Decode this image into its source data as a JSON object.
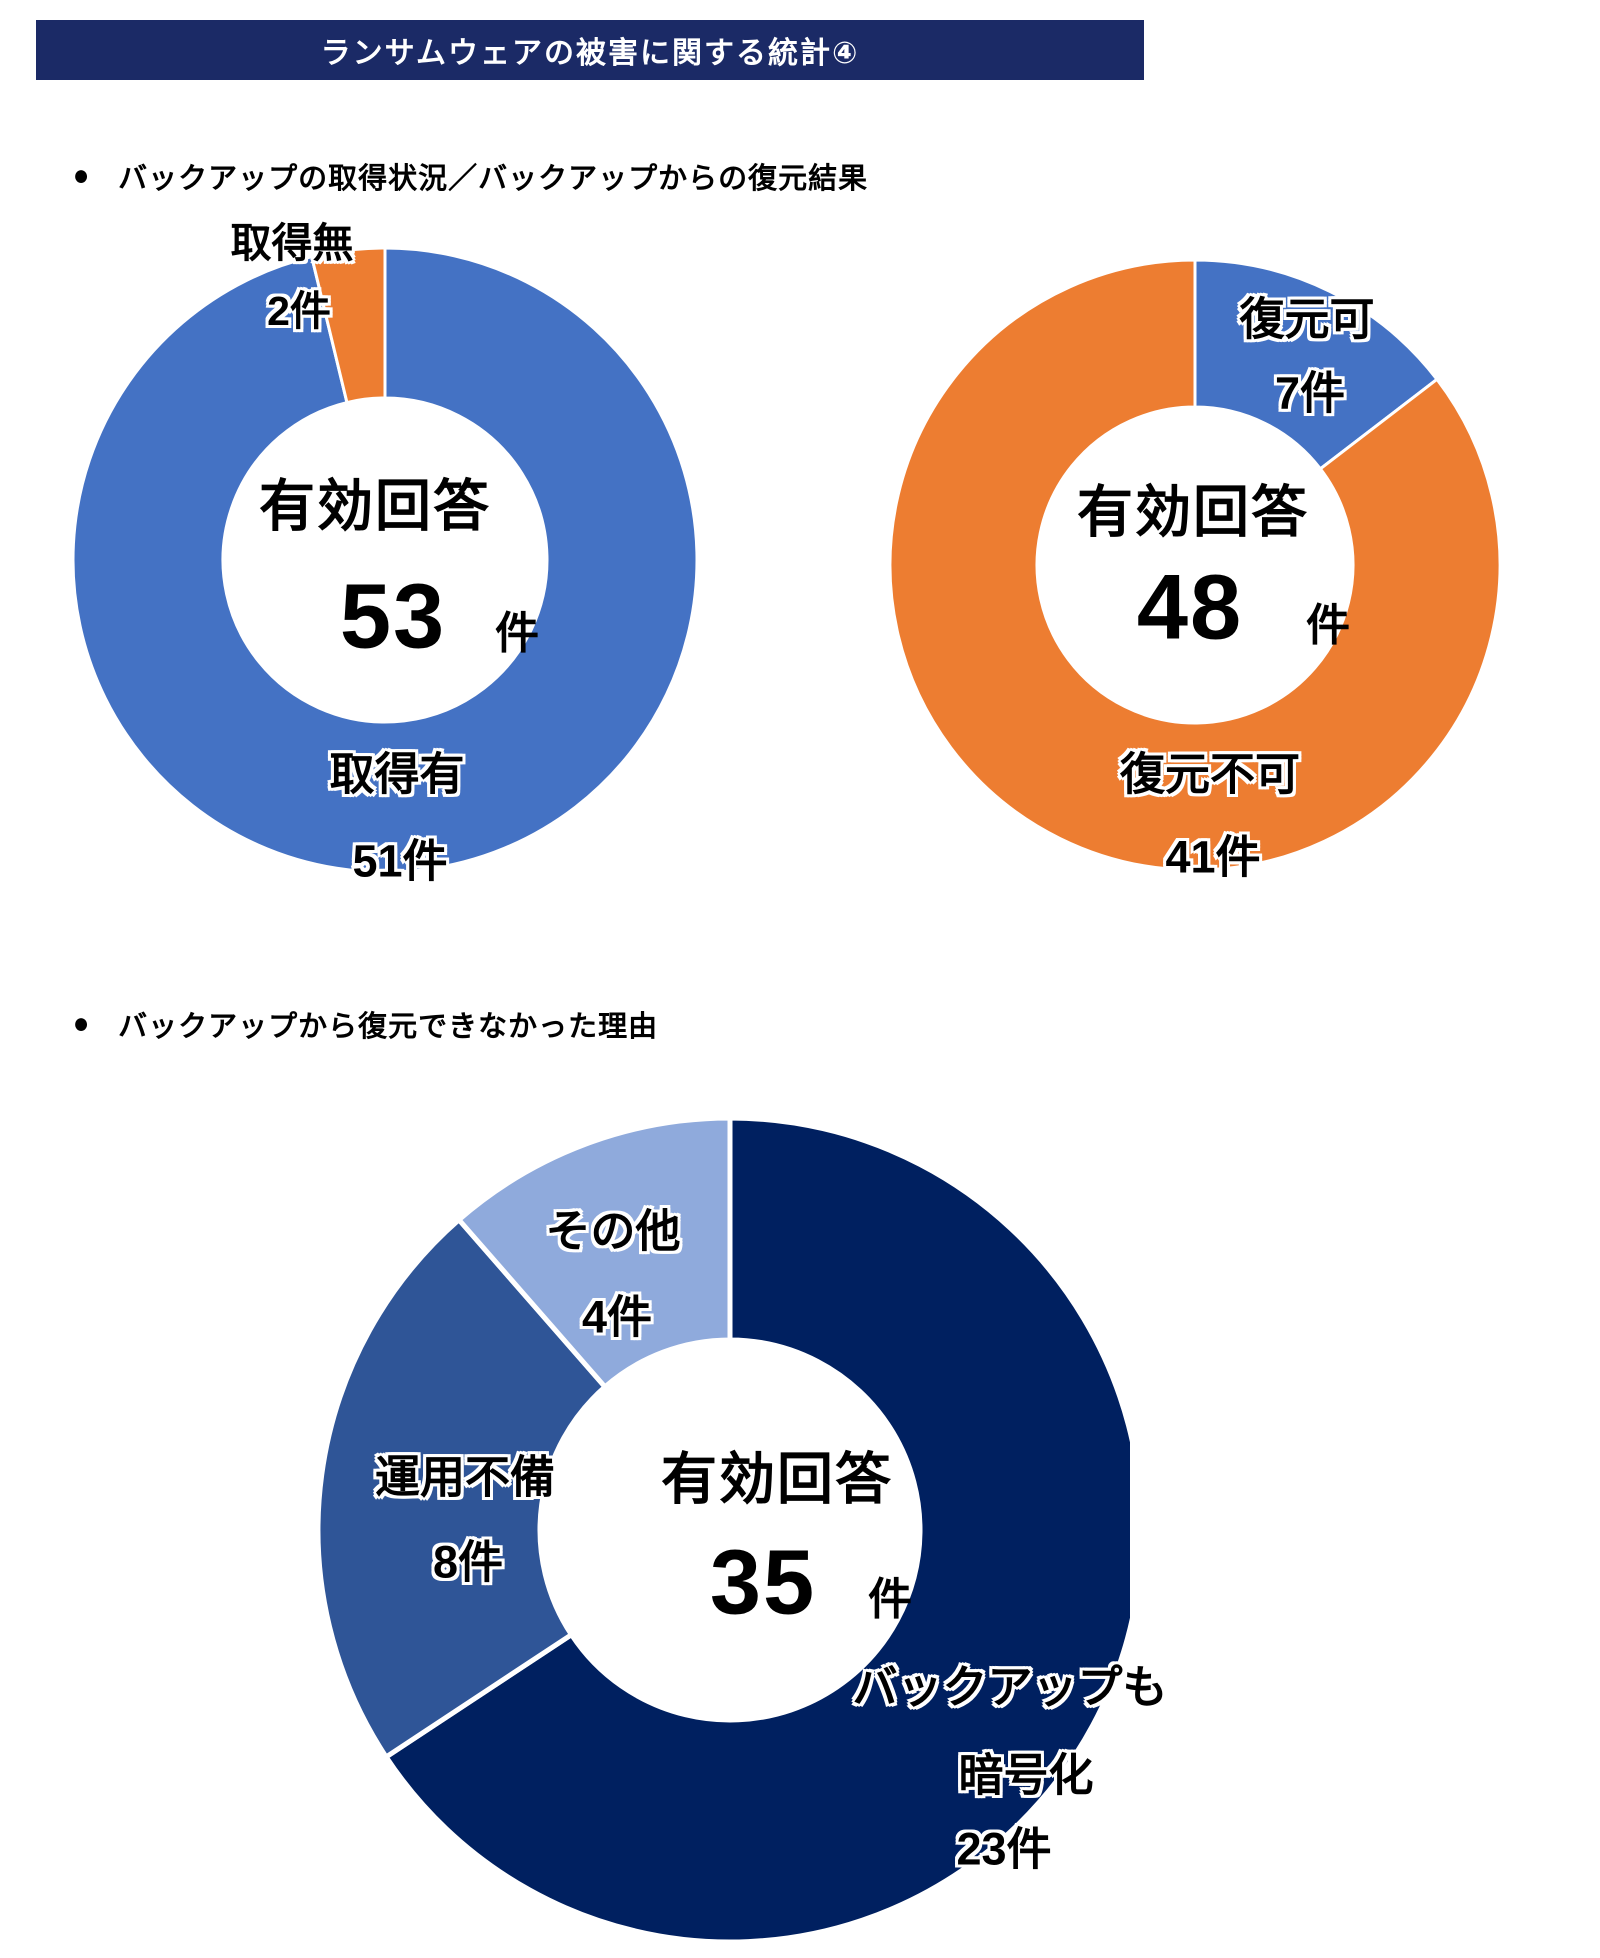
{
  "title_bar": {
    "text": "ランサムウェアの被害に関する統計④",
    "bg_color": "#1B2A66",
    "fg_color": "#FFFFFF"
  },
  "sections": [
    {
      "bullet": "●",
      "heading": "バックアップの取得状況／バックアップからの復元結果"
    },
    {
      "bullet": "●",
      "heading": "バックアップから復元できなかった理由"
    }
  ],
  "chart_data": [
    {
      "type": "pie",
      "subtype": "donut",
      "title": "バックアップの取得状況",
      "start_angle_deg": 0,
      "direction": "clockwise",
      "legend": "none",
      "center_label": {
        "line1": "有効回答",
        "value": "53",
        "unit": "件"
      },
      "total": 53,
      "slices": [
        {
          "name": "取得有",
          "count": 51,
          "count_label": "51件",
          "color": "#4472C4"
        },
        {
          "name": "取得無",
          "count": 2,
          "count_label": "2件",
          "color": "#ED7D31"
        }
      ]
    },
    {
      "type": "pie",
      "subtype": "donut",
      "title": "バックアップからの復元結果",
      "start_angle_deg": 0,
      "direction": "clockwise",
      "legend": "none",
      "center_label": {
        "line1": "有効回答",
        "value": "48",
        "unit": "件"
      },
      "total": 48,
      "slices": [
        {
          "name": "復元可",
          "count": 7,
          "count_label": "7件",
          "color": "#4472C4"
        },
        {
          "name": "復元不可",
          "count": 41,
          "count_label": "41件",
          "color": "#ED7D31"
        }
      ]
    },
    {
      "type": "pie",
      "subtype": "donut",
      "title": "バックアップから復元できなかった理由",
      "start_angle_deg": 0,
      "direction": "clockwise",
      "legend": "none",
      "center_label": {
        "line1": "有効回答",
        "value": "35",
        "unit": "件"
      },
      "total": 35,
      "slices": [
        {
          "name": "バックアップも暗号化",
          "name_lines": [
            "バックアップも",
            "暗号化"
          ],
          "count": 23,
          "count_label": "23件",
          "color": "#002060"
        },
        {
          "name": "運用不備",
          "count": 8,
          "count_label": "8件",
          "color": "#2F5597"
        },
        {
          "name": "その他",
          "count": 4,
          "count_label": "4件",
          "color": "#8FAADC"
        }
      ]
    }
  ]
}
